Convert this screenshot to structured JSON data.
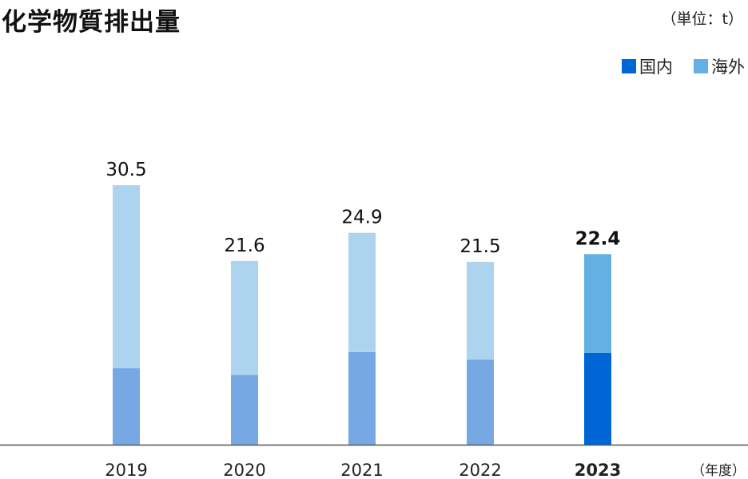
{
  "title": "化学物質排出量",
  "unit_label": "（単位：t）",
  "legend": [
    {
      "label": "国内",
      "color": "#0066d6"
    },
    {
      "label": "海外",
      "color": "#64b0e3"
    }
  ],
  "x_unit_label": "（年度）",
  "chart_data": {
    "type": "bar",
    "stacked": true,
    "categories": [
      "2019",
      "2020",
      "2021",
      "2022",
      "2023"
    ],
    "series": [
      {
        "name": "国内",
        "values": [
          9.0,
          8.2,
          10.9,
          10.0,
          10.8
        ]
      },
      {
        "name": "海外",
        "values": [
          21.5,
          13.4,
          14.0,
          11.5,
          11.6
        ]
      }
    ],
    "totals": [
      "30.5",
      "21.6",
      "24.9",
      "21.5",
      "22.4"
    ],
    "highlight_index": 4,
    "colors": {
      "domestic_muted": "#76a9e4",
      "overseas_muted": "#acd4ee",
      "domestic_highlight": "#0066d6",
      "overseas_highlight": "#64b0e3"
    },
    "ylim": [
      0,
      30.5
    ],
    "grid": false,
    "legend_position": "top-right"
  }
}
